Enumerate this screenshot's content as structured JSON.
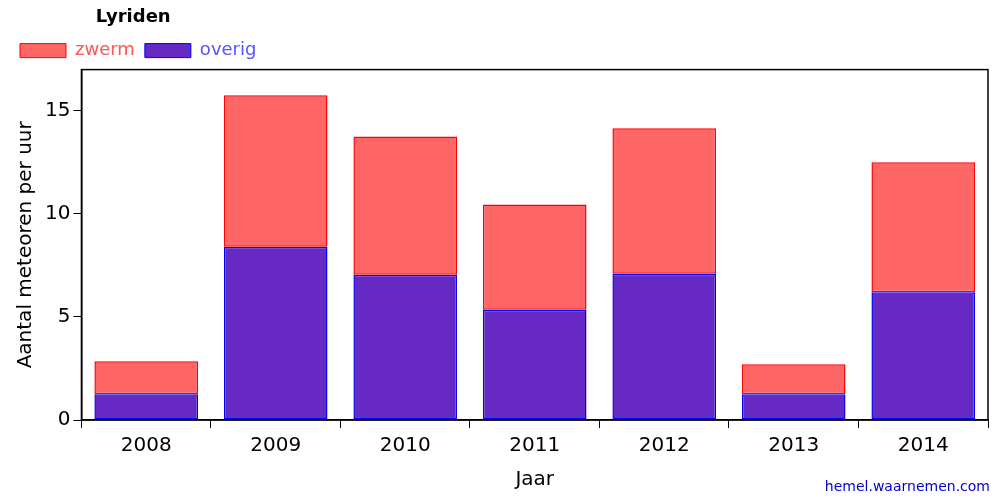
{
  "chart_data": {
    "type": "bar",
    "stacked": true,
    "x_label": "Jaar",
    "y_label": "Aantal meteoren per uur",
    "legend_title": "Lyriden",
    "legend": "upper left",
    "annotation": "hemel.waarnemen.com",
    "categories": [
      "2008",
      "2009",
      "2010",
      "2011",
      "2012",
      "2013",
      "2014"
    ],
    "series": [
      {
        "name": "overig",
        "color": "#6629c4",
        "values": [
          1.25,
          8.4,
          7.05,
          5.35,
          7.1,
          1.25,
          6.2
        ]
      },
      {
        "name": "zwerm",
        "color": "#ff6666",
        "values": [
          1.6,
          7.35,
          6.7,
          5.1,
          7.05,
          1.45,
          6.3
        ]
      }
    ],
    "ylim": [
      0,
      17
    ],
    "yticks": [
      0,
      5,
      10,
      15
    ],
    "grid": false
  }
}
